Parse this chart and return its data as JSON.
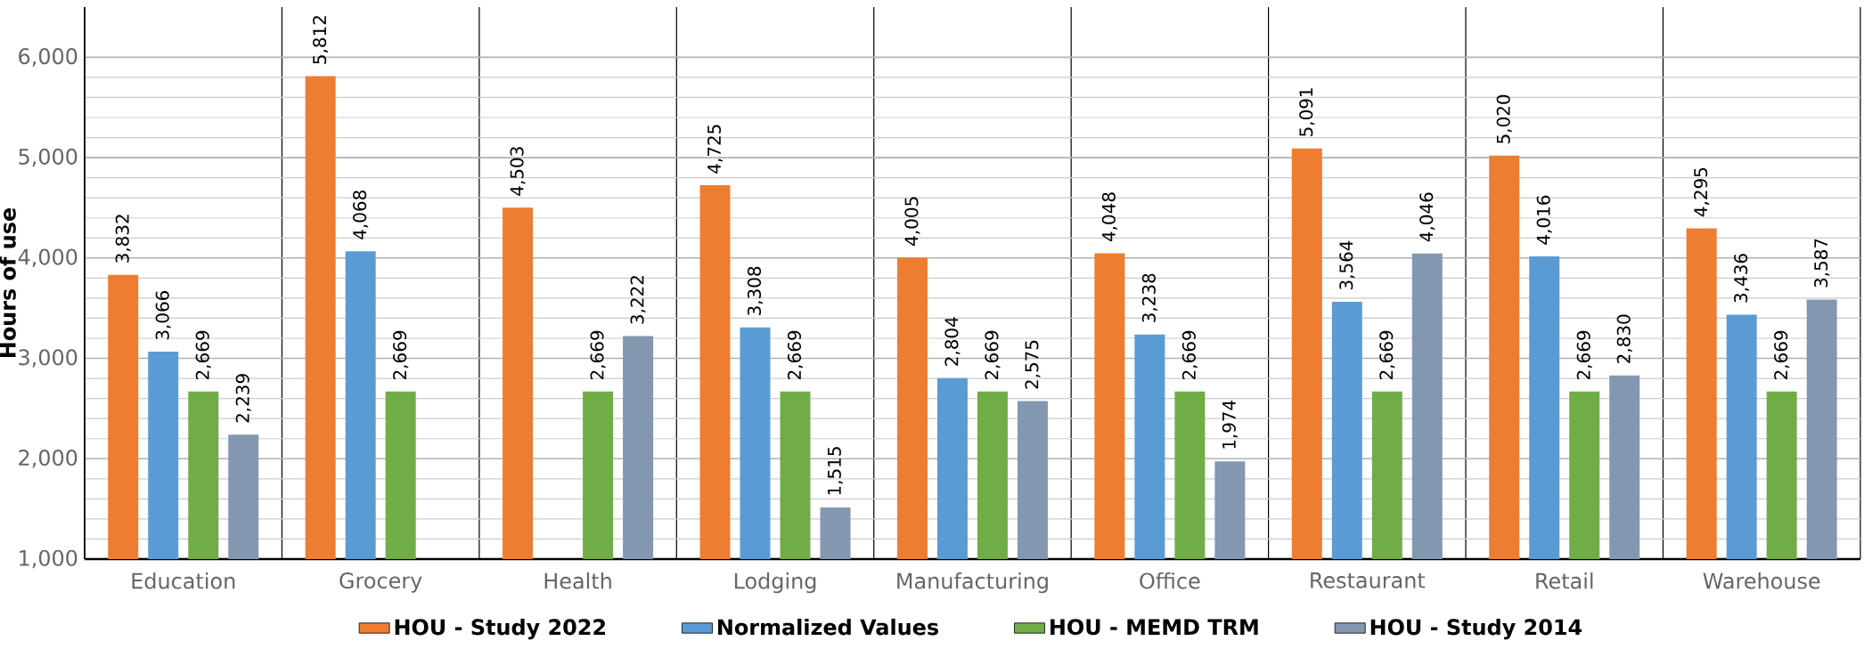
{
  "chart_data": {
    "type": "bar",
    "ylabel": "Hours of use",
    "categories": [
      "Education",
      "Grocery",
      "Health",
      "Lodging",
      "Manufacturing",
      "Office",
      "Restaurant",
      "Retail",
      "Warehouse"
    ],
    "series": [
      {
        "name": "HOU - Study 2022",
        "color": "#ed7d31",
        "values": [
          3832,
          5812,
          4503,
          4725,
          4005,
          4048,
          5091,
          5020,
          4295
        ],
        "value_labels": [
          "3,832",
          "5,812",
          "4,503",
          "4,725",
          "4,005",
          "4,048",
          "5,091",
          "5,020",
          "4,295"
        ]
      },
      {
        "name": "Normalized Values",
        "color": "#5b9bd5",
        "values": [
          3066,
          4068,
          null,
          3308,
          2804,
          3238,
          3564,
          4016,
          3436
        ],
        "value_labels": [
          "3,066",
          "4,068",
          null,
          "3,308",
          "2,804",
          "3,238",
          "3,564",
          "4,016",
          "3,436"
        ]
      },
      {
        "name": "HOU - MEMD TRM",
        "color": "#70ad47",
        "values": [
          2669,
          2669,
          2669,
          2669,
          2669,
          2669,
          2669,
          2669,
          2669
        ],
        "value_labels": [
          "2,669",
          "2,669",
          "2,669",
          "2,669",
          "2,669",
          "2,669",
          "2,669",
          "2,669",
          "2,669"
        ]
      },
      {
        "name": "HOU - Study 2014",
        "color": "#8497b0",
        "values": [
          2239,
          null,
          3222,
          1515,
          2575,
          1974,
          4046,
          2830,
          3587
        ],
        "value_labels": [
          "2,239",
          null,
          "3,222",
          "1,515",
          "2,575",
          "1,974",
          "4,046",
          "2,830",
          "3,587"
        ]
      }
    ],
    "ylim": [
      1000,
      6500
    ],
    "yticks": [
      {
        "value": 1000,
        "label": "1,000"
      },
      {
        "value": 2000,
        "label": "2,000"
      },
      {
        "value": 3000,
        "label": "3,000"
      },
      {
        "value": 4000,
        "label": "4,000"
      },
      {
        "value": 5000,
        "label": "5,000"
      },
      {
        "value": 6000,
        "label": "6,000"
      }
    ],
    "grid": true,
    "legend": "bottom"
  }
}
